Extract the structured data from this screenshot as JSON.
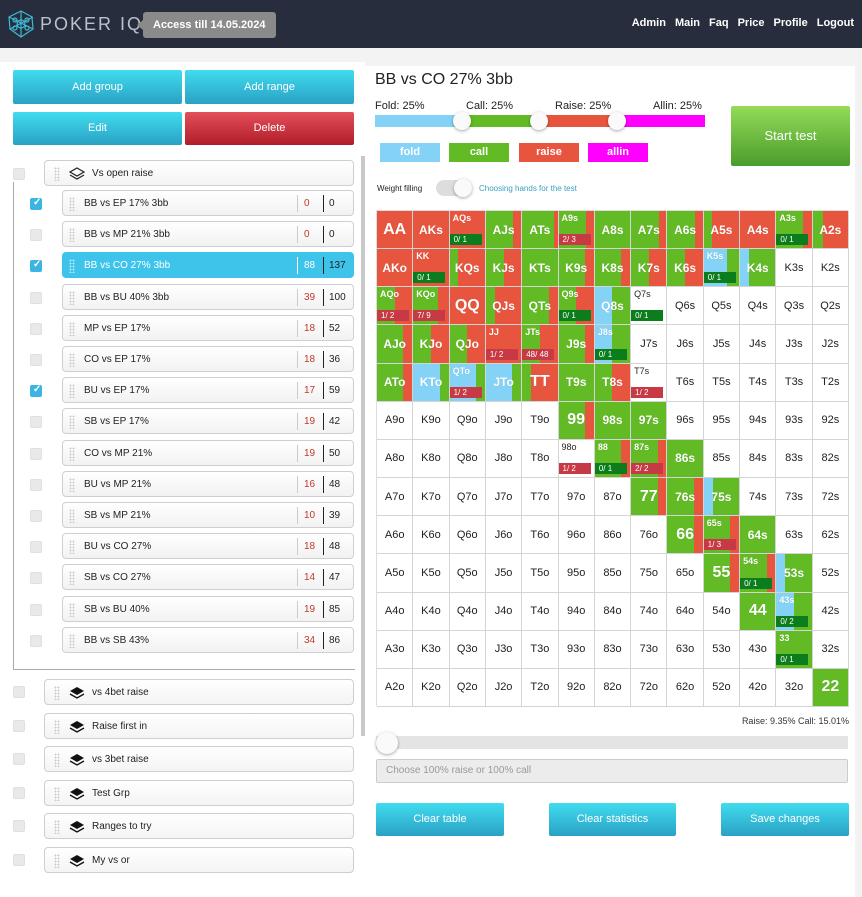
{
  "header": {
    "brand": "POKER IQ",
    "access": "Access till 14.05.2024",
    "nav": [
      "Admin",
      "Main",
      "Faq",
      "Price",
      "Profile",
      "Logout"
    ]
  },
  "left": {
    "add_group": "Add group",
    "add_range": "Add range",
    "edit": "Edit",
    "delete": "Delete",
    "open_group": {
      "label": "Vs open raise",
      "checked": false
    },
    "ranges": [
      {
        "label": "BB vs EP 17% 3bb",
        "errors": "0",
        "total": "0",
        "checked": true,
        "active": false
      },
      {
        "label": "BB vs MP 21% 3bb",
        "errors": "0",
        "total": "0",
        "checked": false,
        "active": false
      },
      {
        "label": "BB vs CO 27% 3bb",
        "errors": "88",
        "total": "137",
        "checked": true,
        "active": true
      },
      {
        "label": "BB vs BU 40% 3bb",
        "errors": "39",
        "total": "100",
        "checked": false,
        "active": false
      },
      {
        "label": "MP vs EP 17%",
        "errors": "18",
        "total": "52",
        "checked": false,
        "active": false
      },
      {
        "label": "CO vs EP 17%",
        "errors": "18",
        "total": "36",
        "checked": false,
        "active": false
      },
      {
        "label": "BU vs EP 17%",
        "errors": "17",
        "total": "59",
        "checked": true,
        "active": false
      },
      {
        "label": "SB vs EP 17%",
        "errors": "19",
        "total": "42",
        "checked": false,
        "active": false
      },
      {
        "label": "CO vs MP 21%",
        "errors": "19",
        "total": "50",
        "checked": false,
        "active": false
      },
      {
        "label": "BU vs MP 21%",
        "errors": "16",
        "total": "48",
        "checked": false,
        "active": false
      },
      {
        "label": "SB vs MP 21%",
        "errors": "10",
        "total": "39",
        "checked": false,
        "active": false
      },
      {
        "label": "BU vs CO 27%",
        "errors": "18",
        "total": "48",
        "checked": false,
        "active": false
      },
      {
        "label": "SB vs CO 27%",
        "errors": "14",
        "total": "47",
        "checked": false,
        "active": false
      },
      {
        "label": "SB vs BU 40%",
        "errors": "19",
        "total": "85",
        "checked": false,
        "active": false
      },
      {
        "label": "BB vs SB 43%",
        "errors": "34",
        "total": "86",
        "checked": false,
        "active": false
      }
    ],
    "groups": [
      {
        "label": "vs 4bet raise"
      },
      {
        "label": "Raise first in"
      },
      {
        "label": "vs 3bet raise"
      },
      {
        "label": "Test Grp"
      },
      {
        "label": "Ranges to try"
      },
      {
        "label": "My vs or"
      }
    ]
  },
  "main": {
    "title": "BB vs CO 27% 3bb",
    "dist": {
      "fold": "Fold: 25%",
      "call": "Call: 25%",
      "raise": "Raise: 25%",
      "allin": "Allin: 25%"
    },
    "actions": {
      "fold": "fold",
      "call": "call",
      "raise": "raise",
      "allin": "allin"
    },
    "colors": {
      "fold": "#84d2f6",
      "call": "#62bb25",
      "raise": "#e8553e",
      "allin": "#ff00ff"
    },
    "start_test": "Start test",
    "weight_filling": "Weight filling",
    "choosing_hands": "Choosing hands for the test",
    "ratio": "Raise: 9.35% Call: 15.01%",
    "note_placeholder": "Choose 100% raise or 100% call",
    "clear_table": "Clear table",
    "clear_stats": "Clear statistics",
    "save_changes": "Save changes"
  },
  "grid": [
    [
      {
        "h": "AA",
        "r": 100
      },
      {
        "h": "AKs",
        "r": 100
      },
      {
        "h": "AQs",
        "r": 100,
        "st": "0/ 1",
        "g": 1
      },
      {
        "h": "AJs",
        "c": 78,
        "r": 22
      },
      {
        "h": "ATs",
        "c": 90,
        "r": 10
      },
      {
        "h": "A9s",
        "c": 78,
        "r": 22,
        "st": "2/ 3",
        "g": 0
      },
      {
        "h": "A8s",
        "c": 100
      },
      {
        "h": "A7s",
        "c": 78,
        "r": 22
      },
      {
        "h": "A6s",
        "c": 78,
        "r": 22
      },
      {
        "h": "A5s",
        "c": 22,
        "r": 78
      },
      {
        "h": "A4s",
        "r": 100
      },
      {
        "h": "A3s",
        "c": 75,
        "r": 25,
        "st": "0/ 1",
        "g": 1
      },
      {
        "h": "A2s",
        "c": 30,
        "r": 70
      }
    ],
    [
      {
        "h": "AKo",
        "r": 100
      },
      {
        "h": "KK",
        "r": 100,
        "st": "0/ 1",
        "g": 1
      },
      {
        "h": "KQs",
        "c": 25,
        "r": 75
      },
      {
        "h": "KJs",
        "c": 50,
        "r": 50
      },
      {
        "h": "KTs",
        "c": 100
      },
      {
        "h": "K9s",
        "c": 75,
        "r": 25
      },
      {
        "h": "K8s",
        "c": 75,
        "r": 25
      },
      {
        "h": "K7s",
        "c": 50,
        "r": 50
      },
      {
        "h": "K6s",
        "c": 50,
        "r": 50
      },
      {
        "h": "K5s",
        "f": 65,
        "c": 35,
        "st": "0/ 1",
        "g": 1
      },
      {
        "h": "K4s",
        "f": 25,
        "c": 75
      },
      {
        "h": "K3s"
      },
      {
        "h": "K2s"
      }
    ],
    [
      {
        "h": "AQo",
        "c": 50,
        "r": 50,
        "st": "1/ 2",
        "g": 0
      },
      {
        "h": "KQo",
        "c": 70,
        "r": 30,
        "st": "7/ 9",
        "g": 0
      },
      {
        "h": "QQ",
        "r": 100
      },
      {
        "h": "QJs",
        "c": 25,
        "r": 75
      },
      {
        "h": "QTs",
        "c": 75,
        "r": 25
      },
      {
        "h": "Q9s",
        "c": 50,
        "r": 50,
        "st": "0/ 1",
        "g": 1
      },
      {
        "h": "Q8s",
        "f": 50,
        "c": 50
      },
      {
        "h": "Q7s",
        "st": "0/ 1",
        "g": 1
      },
      {
        "h": "Q6s"
      },
      {
        "h": "Q5s"
      },
      {
        "h": "Q4s"
      },
      {
        "h": "Q3s"
      },
      {
        "h": "Q2s"
      }
    ],
    [
      {
        "h": "AJo",
        "c": 75,
        "r": 25
      },
      {
        "h": "KJo",
        "c": 50,
        "r": 50
      },
      {
        "h": "QJo",
        "c": 50,
        "r": 50
      },
      {
        "h": "JJ",
        "r": 100,
        "st": "1/ 2",
        "g": 0
      },
      {
        "h": "JTs",
        "c": 50,
        "r": 50,
        "st": "48/ 48",
        "g": 0
      },
      {
        "h": "J9s",
        "c": 75,
        "r": 25
      },
      {
        "h": "J8s",
        "f": 50,
        "c": 50,
        "st": "0/ 1",
        "g": 1
      },
      {
        "h": "J7s"
      },
      {
        "h": "J6s"
      },
      {
        "h": "J5s"
      },
      {
        "h": "J4s"
      },
      {
        "h": "J3s"
      },
      {
        "h": "J2s"
      }
    ],
    [
      {
        "h": "ATo",
        "c": 75,
        "r": 25
      },
      {
        "h": "KTo",
        "f": 75,
        "c": 25
      },
      {
        "h": "QTo",
        "f": 75,
        "c": 25,
        "st": "1/ 2",
        "g": 0
      },
      {
        "h": "JTo",
        "f": 75,
        "c": 25
      },
      {
        "h": "TT",
        "c": 25,
        "r": 75
      },
      {
        "h": "T9s",
        "c": 100
      },
      {
        "h": "T8s",
        "c": 50,
        "r": 50
      },
      {
        "h": "T7s",
        "st": "1/ 2",
        "g": 0
      },
      {
        "h": "T6s"
      },
      {
        "h": "T5s"
      },
      {
        "h": "T4s"
      },
      {
        "h": "T3s"
      },
      {
        "h": "T2s"
      }
    ],
    [
      {
        "h": "A9o"
      },
      {
        "h": "K9o"
      },
      {
        "h": "Q9o"
      },
      {
        "h": "J9o"
      },
      {
        "h": "T9o"
      },
      {
        "h": "99",
        "c": 75,
        "r": 25
      },
      {
        "h": "98s",
        "c": 100
      },
      {
        "h": "97s",
        "c": 100
      },
      {
        "h": "96s"
      },
      {
        "h": "95s"
      },
      {
        "h": "94s"
      },
      {
        "h": "93s"
      },
      {
        "h": "92s"
      }
    ],
    [
      {
        "h": "A8o"
      },
      {
        "h": "K8o"
      },
      {
        "h": "Q8o"
      },
      {
        "h": "J8o"
      },
      {
        "h": "T8o"
      },
      {
        "h": "98o",
        "st": "1/ 2",
        "g": 0
      },
      {
        "h": "88",
        "c": 75,
        "r": 25,
        "st": "0/ 1",
        "g": 1
      },
      {
        "h": "87s",
        "c": 75,
        "r": 25,
        "st": "2/ 2",
        "g": 0
      },
      {
        "h": "86s",
        "c": 100
      },
      {
        "h": "85s"
      },
      {
        "h": "84s"
      },
      {
        "h": "83s"
      },
      {
        "h": "82s"
      }
    ],
    [
      {
        "h": "A7o"
      },
      {
        "h": "K7o"
      },
      {
        "h": "Q7o"
      },
      {
        "h": "J7o"
      },
      {
        "h": "T7o"
      },
      {
        "h": "97o"
      },
      {
        "h": "87o"
      },
      {
        "h": "77",
        "c": 75,
        "r": 25
      },
      {
        "h": "76s",
        "c": 75,
        "r": 25
      },
      {
        "h": "75s",
        "f": 25,
        "c": 75
      },
      {
        "h": "74s"
      },
      {
        "h": "73s"
      },
      {
        "h": "72s"
      }
    ],
    [
      {
        "h": "A6o"
      },
      {
        "h": "K6o"
      },
      {
        "h": "Q6o"
      },
      {
        "h": "J6o"
      },
      {
        "h": "T6o"
      },
      {
        "h": "96o"
      },
      {
        "h": "86o"
      },
      {
        "h": "76o"
      },
      {
        "h": "66",
        "c": 75,
        "r": 25
      },
      {
        "h": "65s",
        "c": 75,
        "r": 25,
        "st": "1/ 3",
        "g": 0
      },
      {
        "h": "64s",
        "c": 100
      },
      {
        "h": "63s"
      },
      {
        "h": "62s"
      }
    ],
    [
      {
        "h": "A5o"
      },
      {
        "h": "K5o"
      },
      {
        "h": "Q5o"
      },
      {
        "h": "J5o"
      },
      {
        "h": "T5o"
      },
      {
        "h": "95o"
      },
      {
        "h": "85o"
      },
      {
        "h": "75o"
      },
      {
        "h": "65o"
      },
      {
        "h": "55",
        "c": 75,
        "r": 25
      },
      {
        "h": "54s",
        "c": 75,
        "r": 25,
        "st": "0/ 1",
        "g": 1
      },
      {
        "h": "53s",
        "f": 25,
        "c": 75
      },
      {
        "h": "52s"
      }
    ],
    [
      {
        "h": "A4o"
      },
      {
        "h": "K4o"
      },
      {
        "h": "Q4o"
      },
      {
        "h": "J4o"
      },
      {
        "h": "T4o"
      },
      {
        "h": "94o"
      },
      {
        "h": "84o"
      },
      {
        "h": "74o"
      },
      {
        "h": "64o"
      },
      {
        "h": "54o"
      },
      {
        "h": "44",
        "c": 100
      },
      {
        "h": "43s",
        "f": 50,
        "c": 50,
        "st": "0/ 2",
        "g": 1
      },
      {
        "h": "42s"
      }
    ],
    [
      {
        "h": "A3o"
      },
      {
        "h": "K3o"
      },
      {
        "h": "Q3o"
      },
      {
        "h": "J3o"
      },
      {
        "h": "T3o"
      },
      {
        "h": "93o"
      },
      {
        "h": "83o"
      },
      {
        "h": "73o"
      },
      {
        "h": "63o"
      },
      {
        "h": "53o"
      },
      {
        "h": "43o"
      },
      {
        "h": "33",
        "c": 100,
        "st": "0/ 1",
        "g": 1
      },
      {
        "h": "32s"
      }
    ],
    [
      {
        "h": "A2o"
      },
      {
        "h": "K2o"
      },
      {
        "h": "Q2o"
      },
      {
        "h": "J2o"
      },
      {
        "h": "T2o"
      },
      {
        "h": "92o"
      },
      {
        "h": "82o"
      },
      {
        "h": "72o"
      },
      {
        "h": "62o"
      },
      {
        "h": "52o"
      },
      {
        "h": "42o"
      },
      {
        "h": "32o"
      },
      {
        "h": "22",
        "c": 100
      }
    ]
  ]
}
